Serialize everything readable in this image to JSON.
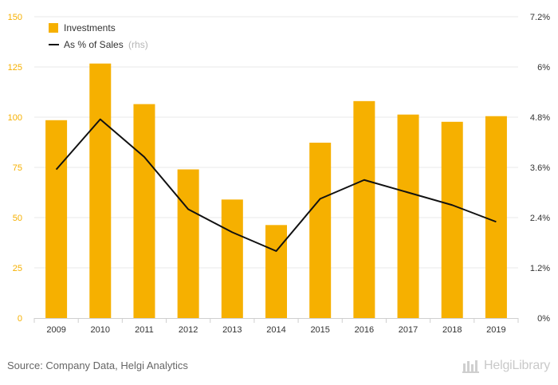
{
  "chart_data": {
    "type": "bar",
    "categories": [
      "2009",
      "2010",
      "2011",
      "2012",
      "2013",
      "2014",
      "2015",
      "2016",
      "2017",
      "2018",
      "2019"
    ],
    "series": [
      {
        "name": "Investments",
        "axis": "left",
        "type": "bar",
        "color": "#f6b000",
        "values": [
          98.5,
          126.7,
          106.5,
          74.0,
          59.0,
          46.3,
          87.3,
          108.0,
          101.3,
          97.7,
          100.5
        ]
      },
      {
        "name": "As % of Sales",
        "name_suffix": "(rhs)",
        "axis": "right",
        "type": "line",
        "color": "#111111",
        "values": [
          3.55,
          4.75,
          3.85,
          2.6,
          2.05,
          1.6,
          2.85,
          3.3,
          3.0,
          2.7,
          2.3
        ]
      }
    ],
    "y_left": {
      "min": 0,
      "max": 150,
      "ticks": [
        "0",
        "25",
        "50",
        "75",
        "100",
        "125",
        "150"
      ]
    },
    "y_right": {
      "min": 0,
      "max": 7.2,
      "ticks": [
        "0%",
        "1.2%",
        "2.4%",
        "3.6%",
        "4.8%",
        "6%",
        "7.2%"
      ]
    },
    "legend": {
      "position": "top-left"
    },
    "grid": true
  },
  "footer": {
    "source": "Source: Company Data, Helgi Analytics",
    "logo_text": "HelgiLibrary"
  }
}
